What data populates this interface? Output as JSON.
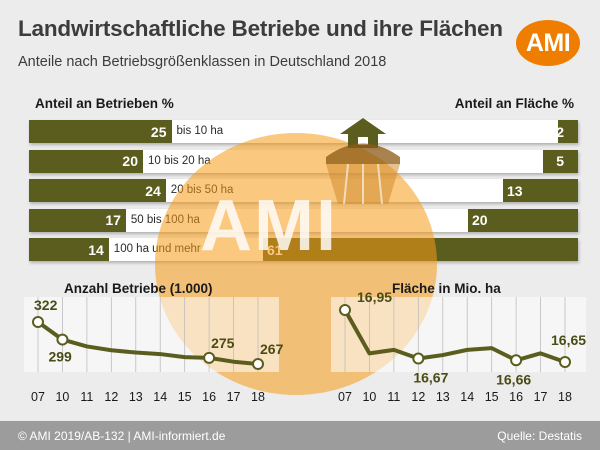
{
  "header": {
    "title": "Landwirtschaftliche Betriebe und ihre Flächen",
    "subtitle": "Anteile nach Betriebsgrößenklassen in Deutschland 2018",
    "logo": "AMI"
  },
  "watermark": {
    "text": "AMI"
  },
  "colors": {
    "bar": "#5b5d1f",
    "logo": "#ef7d00",
    "footer": "#9c9c9c"
  },
  "chart_data": [
    {
      "type": "bar",
      "title": "Anteil an Betrieben %",
      "categories": [
        "bis 10 ha",
        "10 bis 20 ha",
        "20 bis 50 ha",
        "50 bis 100 ha",
        "100 ha und mehr"
      ],
      "values": [
        25,
        20,
        24,
        17,
        14
      ],
      "direction": "left-to-right"
    },
    {
      "type": "bar",
      "title": "Anteil an Fläche %",
      "categories": [
        "bis 10 ha",
        "10 bis 20 ha",
        "20 bis 50 ha",
        "50 bis 100 ha",
        "100 ha und mehr"
      ],
      "values": [
        2,
        5,
        13,
        20,
        61
      ],
      "direction": "right-to-left"
    },
    {
      "type": "line",
      "title": "Anzahl Betriebe (1.000)",
      "x": [
        "07",
        "10",
        "11",
        "12",
        "13",
        "14",
        "15",
        "16",
        "17",
        "18"
      ],
      "values": [
        322,
        299,
        290,
        285,
        282,
        280,
        276,
        275,
        270,
        267
      ],
      "labels": [
        {
          "x": "07",
          "text": "322"
        },
        {
          "x": "10",
          "text": "299"
        },
        {
          "x": "16",
          "text": "275"
        },
        {
          "x": "18",
          "text": "267"
        }
      ],
      "markers": [
        "07",
        "10",
        "16",
        "18"
      ]
    },
    {
      "type": "line",
      "title": "Fläche in Mio. ha",
      "x": [
        "07",
        "10",
        "11",
        "12",
        "13",
        "14",
        "15",
        "16",
        "17",
        "18"
      ],
      "values": [
        16.95,
        16.7,
        16.72,
        16.67,
        16.69,
        16.72,
        16.73,
        16.66,
        16.7,
        16.65
      ],
      "labels": [
        {
          "x": "07",
          "text": "16,95"
        },
        {
          "x": "12",
          "text": "16,67"
        },
        {
          "x": "16",
          "text": "16,66"
        },
        {
          "x": "18",
          "text": "16,65"
        }
      ],
      "markers": [
        "07",
        "12",
        "16",
        "18"
      ]
    }
  ],
  "footer": {
    "left": "© AMI 2019/AB-132 | AMI-informiert.de",
    "right": "Quelle: Destatis"
  }
}
